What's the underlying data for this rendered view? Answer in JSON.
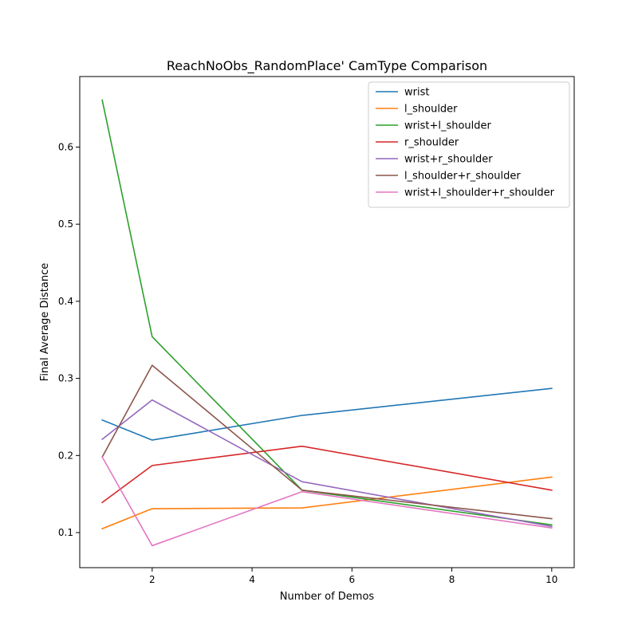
{
  "chart_data": {
    "type": "line",
    "title": "ReachNoObs_RandomPlace' CamType Comparison",
    "xlabel": "Number of Demos",
    "ylabel": "Final Average Distance",
    "xlim": [
      0.55,
      10.45
    ],
    "ylim": [
      0.0545,
      0.6915
    ],
    "x_ticks": [
      2,
      4,
      6,
      8,
      10
    ],
    "x_tick_labels": [
      "2",
      "4",
      "6",
      "8",
      "10"
    ],
    "y_ticks": [
      0.1,
      0.2,
      0.3,
      0.4,
      0.5,
      0.6
    ],
    "y_tick_labels": [
      "0.1",
      "0.2",
      "0.3",
      "0.4",
      "0.5",
      "0.6"
    ],
    "grid": false,
    "legend_position": "top-right",
    "x": [
      1,
      2,
      5,
      10
    ],
    "series": [
      {
        "name": "wrist",
        "color": "#1f77b4",
        "values": [
          0.246,
          0.22,
          0.252,
          0.287
        ]
      },
      {
        "name": "l_shoulder",
        "color": "#ff7f0e",
        "values": [
          0.105,
          0.131,
          0.132,
          0.172
        ]
      },
      {
        "name": "wrist+l_shoulder",
        "color": "#2ca02c",
        "values": [
          0.661,
          0.354,
          0.155,
          0.11
        ]
      },
      {
        "name": "r_shoulder",
        "color": "#d62728",
        "values": [
          0.139,
          0.187,
          0.212,
          0.155
        ]
      },
      {
        "name": "wrist+r_shoulder",
        "color": "#9467bd",
        "values": [
          0.221,
          0.272,
          0.166,
          0.108
        ]
      },
      {
        "name": "l_shoulder+r_shoulder",
        "color": "#8c564b",
        "values": [
          0.198,
          0.317,
          0.155,
          0.118
        ]
      },
      {
        "name": "wrist+l_shoulder+r_shoulder",
        "color": "#e377c2",
        "values": [
          0.198,
          0.083,
          0.153,
          0.106
        ]
      }
    ]
  }
}
